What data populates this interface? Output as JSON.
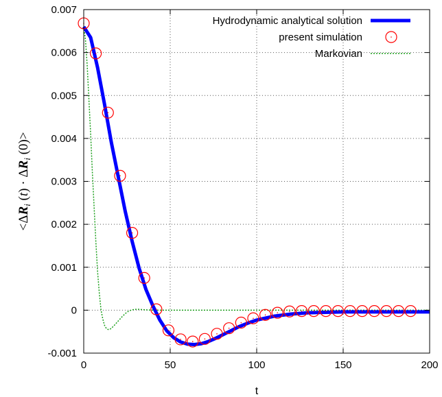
{
  "chart_data": {
    "type": "line",
    "xlabel": "t",
    "ylabel": {
      "lt": "<",
      "delta1": "Δ",
      "r1": "R",
      "i1": "i",
      "open1": " (",
      "t": "t",
      "close1": ") · ",
      "delta2": "Δ",
      "r2": "R",
      "i2": "i",
      "rest": " (0)>"
    },
    "xlim": [
      0,
      200
    ],
    "ylim": [
      -0.001,
      0.007
    ],
    "x_ticks": [
      {
        "value": 0,
        "label": "0"
      },
      {
        "value": 50,
        "label": "50"
      },
      {
        "value": 100,
        "label": "100"
      },
      {
        "value": 150,
        "label": "150"
      },
      {
        "value": 200,
        "label": "200"
      }
    ],
    "y_ticks": [
      {
        "value": -0.001,
        "label": "-0.001"
      },
      {
        "value": 0,
        "label": "0"
      },
      {
        "value": 0.001,
        "label": "0.001"
      },
      {
        "value": 0.002,
        "label": "0.002"
      },
      {
        "value": 0.003,
        "label": "0.003"
      },
      {
        "value": 0.004,
        "label": "0.004"
      },
      {
        "value": 0.005,
        "label": "0.005"
      },
      {
        "value": 0.006,
        "label": "0.006"
      },
      {
        "value": 0.007,
        "label": "0.007"
      }
    ],
    "grid": true,
    "legend_position": "top-right",
    "series": [
      {
        "name": "Hydrodynamic analytical solution",
        "style": "line",
        "color": "#0000ff",
        "x": [
          0,
          4,
          8,
          12,
          16,
          20,
          24,
          28,
          32,
          36,
          40,
          44,
          48,
          52,
          56,
          60,
          64,
          68,
          72,
          76,
          80,
          85,
          90,
          95,
          100,
          110,
          120,
          130,
          140,
          150,
          160,
          170,
          180,
          190,
          200
        ],
        "y": [
          0.0066,
          0.00635,
          0.00565,
          0.0048,
          0.0039,
          0.0031,
          0.0023,
          0.0016,
          0.00098,
          0.00048,
          0.0001,
          -0.00023,
          -0.00048,
          -0.00064,
          -0.00074,
          -0.00079,
          -0.0008,
          -0.00078,
          -0.00073,
          -0.00066,
          -0.00058,
          -0.00048,
          -0.00038,
          -0.0003,
          -0.00023,
          -0.00014,
          -9e-05,
          -6e-05,
          -5e-05,
          -4e-05,
          -4e-05,
          -4e-05,
          -4e-05,
          -4e-05,
          -4e-05
        ]
      },
      {
        "name": "present simulation",
        "style": "points",
        "color": "#ff0000",
        "x": [
          0,
          7,
          14,
          21,
          28,
          35,
          42,
          49,
          56,
          63,
          70,
          77,
          84,
          91,
          98,
          105,
          112,
          119,
          126,
          133,
          140,
          147,
          154,
          161,
          168,
          175,
          182,
          189
        ],
        "y": [
          0.00668,
          0.00598,
          0.0046,
          0.00313,
          0.0018,
          0.00075,
          2e-05,
          -0.00047,
          -0.00068,
          -0.00073,
          -0.00067,
          -0.00055,
          -0.00042,
          -0.00029,
          -0.00019,
          -0.00011,
          -6e-05,
          -3e-05,
          -2e-05,
          -2e-05,
          -2e-05,
          -2e-05,
          -2e-05,
          -2e-05,
          -2e-05,
          -2e-05,
          -2e-05,
          -2e-05
        ]
      },
      {
        "name": "Markovian",
        "style": "dotted",
        "color": "#1a9e1a",
        "x": [
          0,
          1,
          2,
          3,
          4,
          5,
          6,
          7,
          8,
          9,
          10,
          11,
          12,
          13,
          14,
          15,
          16,
          18,
          20,
          22,
          24,
          26,
          28,
          30,
          32,
          35,
          40,
          50,
          60,
          80,
          100,
          150,
          200
        ],
        "y": [
          0.0066,
          0.0063,
          0.0057,
          0.0049,
          0.0041,
          0.0032,
          0.0024,
          0.0016,
          0.0009,
          0.0004,
          0.0,
          -0.0002,
          -0.00035,
          -0.00042,
          -0.00045,
          -0.00045,
          -0.00042,
          -0.00034,
          -0.00025,
          -0.00016,
          -8e-05,
          -2e-05,
          1e-05,
          2e-05,
          2e-05,
          1e-05,
          0.0,
          0.0,
          0.0,
          0.0,
          0.0,
          0.0,
          0.0
        ]
      }
    ]
  }
}
